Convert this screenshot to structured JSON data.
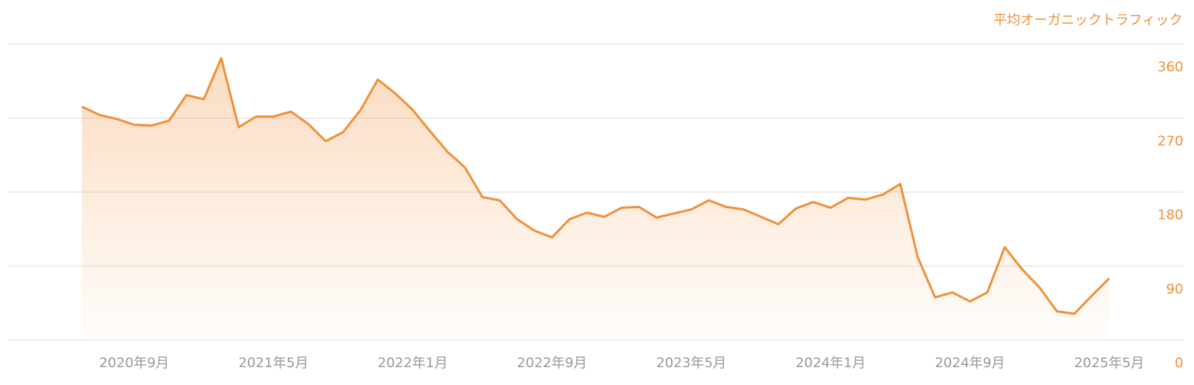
{
  "chart_data": {
    "type": "area",
    "y_axis_title": "平均オーガニックトラフィック",
    "categories": [
      null,
      null,
      null,
      "2020年9月",
      null,
      null,
      null,
      null,
      null,
      null,
      null,
      "2021年5月",
      null,
      null,
      null,
      null,
      null,
      null,
      null,
      "2022年1月",
      null,
      null,
      null,
      null,
      null,
      null,
      null,
      "2022年9月",
      null,
      null,
      null,
      null,
      null,
      null,
      null,
      "2023年5月",
      null,
      null,
      null,
      null,
      null,
      null,
      null,
      "2024年1月",
      null,
      null,
      null,
      null,
      null,
      null,
      null,
      "2024年9月",
      null,
      null,
      null,
      null,
      null,
      null,
      null,
      "2025年5月"
    ],
    "series": [
      {
        "name": "平均オーガニックトラフィック",
        "color": "#f0913a",
        "values": [
          284,
          274,
          269,
          262,
          261,
          267,
          298,
          293,
          343,
          259,
          272,
          272,
          278,
          263,
          242,
          253,
          280,
          317,
          300,
          280,
          254,
          229,
          210,
          174,
          170,
          147,
          133,
          125,
          147,
          155,
          150,
          161,
          162,
          149,
          154,
          159,
          170,
          162,
          159,
          150,
          141,
          160,
          168,
          161,
          173,
          171,
          177,
          190,
          101,
          52,
          58,
          47,
          58,
          113,
          86,
          64,
          35,
          32,
          54,
          75
        ]
      }
    ],
    "ylim": [
      0,
      360
    ],
    "yticks": [
      0,
      90,
      180,
      270,
      360
    ],
    "grid": true,
    "y_axis_side": "right"
  }
}
